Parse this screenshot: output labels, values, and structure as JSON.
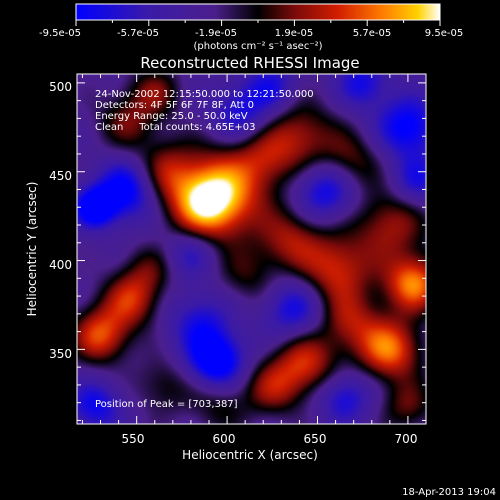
{
  "colorbar": {
    "tick_labels": [
      "-9.5e-05",
      "-5.7e-05",
      "-1.9e-05",
      "1.9e-05",
      "5.7e-05",
      "9.5e-05"
    ],
    "unit_label": "(photons cm⁻² s⁻¹ asec⁻²)",
    "range": [
      -9.5e-05,
      9.5e-05
    ],
    "colormap": [
      "#0000ff",
      "#3a1aa8",
      "#4b1f8c",
      "#000000",
      "#7a0a0a",
      "#d21e00",
      "#ff7a00",
      "#ffd200",
      "#ffffff"
    ]
  },
  "chart_data": {
    "type": "heatmap",
    "title": "Reconstructed RHESSI Image",
    "xlabel": "Heliocentric X (arcsec)",
    "ylabel": "Heliocentric Y (arcsec)",
    "xlim": [
      517,
      710
    ],
    "ylim": [
      308,
      505
    ],
    "x_ticks": [
      550,
      600,
      650,
      700
    ],
    "y_ticks": [
      350,
      400,
      450,
      500
    ],
    "annotations": [
      "24-Nov-2002 12:15:50.000 to 12:21:50.000",
      "Detectors: 4F 5F 6F 7F 8F, Att 0",
      "Energy Range: 25.0 - 50.0 keV",
      "Clean     Total counts: 4.65E+03"
    ],
    "peak_label": "Position of Peak = [703,387]",
    "peak": [
      703,
      387
    ],
    "blobs": [
      {
        "x": 588,
        "y": 432,
        "a": 1.0,
        "s": 14
      },
      {
        "x": 600,
        "y": 440,
        "a": 0.7,
        "s": 18
      },
      {
        "x": 565,
        "y": 450,
        "a": 0.55,
        "s": 12
      },
      {
        "x": 545,
        "y": 478,
        "a": 0.45,
        "s": 12
      },
      {
        "x": 640,
        "y": 470,
        "a": 0.6,
        "s": 14
      },
      {
        "x": 668,
        "y": 455,
        "a": 0.5,
        "s": 12
      },
      {
        "x": 620,
        "y": 458,
        "a": 0.4,
        "s": 12
      },
      {
        "x": 560,
        "y": 495,
        "a": 0.45,
        "s": 10
      },
      {
        "x": 690,
        "y": 420,
        "a": 0.6,
        "s": 14
      },
      {
        "x": 660,
        "y": 395,
        "a": 0.75,
        "s": 14
      },
      {
        "x": 703,
        "y": 387,
        "a": 1.0,
        "s": 11
      },
      {
        "x": 635,
        "y": 412,
        "a": 0.55,
        "s": 12
      },
      {
        "x": 612,
        "y": 392,
        "a": 0.35,
        "s": 12
      },
      {
        "x": 530,
        "y": 358,
        "a": 0.85,
        "s": 11
      },
      {
        "x": 547,
        "y": 378,
        "a": 0.7,
        "s": 11
      },
      {
        "x": 557,
        "y": 395,
        "a": 0.35,
        "s": 10
      },
      {
        "x": 690,
        "y": 350,
        "a": 0.95,
        "s": 12
      },
      {
        "x": 668,
        "y": 365,
        "a": 0.55,
        "s": 12
      },
      {
        "x": 643,
        "y": 342,
        "a": 0.75,
        "s": 12
      },
      {
        "x": 625,
        "y": 328,
        "a": 0.55,
        "s": 11
      },
      {
        "x": 595,
        "y": 320,
        "a": 0.35,
        "s": 12
      },
      {
        "x": 565,
        "y": 330,
        "a": 0.35,
        "s": 11
      },
      {
        "x": 700,
        "y": 318,
        "a": 0.45,
        "s": 10
      },
      {
        "x": 545,
        "y": 440,
        "a": -0.8,
        "s": 12
      },
      {
        "x": 527,
        "y": 430,
        "a": -0.9,
        "s": 8
      },
      {
        "x": 594,
        "y": 343,
        "a": -0.95,
        "s": 11
      },
      {
        "x": 655,
        "y": 440,
        "a": -0.7,
        "s": 12
      },
      {
        "x": 700,
        "y": 475,
        "a": -0.75,
        "s": 12
      },
      {
        "x": 608,
        "y": 483,
        "a": -0.55,
        "s": 12
      },
      {
        "x": 637,
        "y": 373,
        "a": -0.6,
        "s": 12
      },
      {
        "x": 665,
        "y": 323,
        "a": -0.55,
        "s": 10
      },
      {
        "x": 585,
        "y": 365,
        "a": -0.5,
        "s": 12
      },
      {
        "x": 527,
        "y": 318,
        "a": -0.6,
        "s": 10
      },
      {
        "x": 705,
        "y": 445,
        "a": -0.5,
        "s": 10
      },
      {
        "x": 580,
        "y": 405,
        "a": -0.45,
        "s": 10
      },
      {
        "x": 625,
        "y": 498,
        "a": -0.45,
        "s": 10
      },
      {
        "x": 675,
        "y": 500,
        "a": -0.55,
        "s": 10
      }
    ]
  },
  "footer": {
    "timestamp": "18-Apr-2013 19:04"
  }
}
